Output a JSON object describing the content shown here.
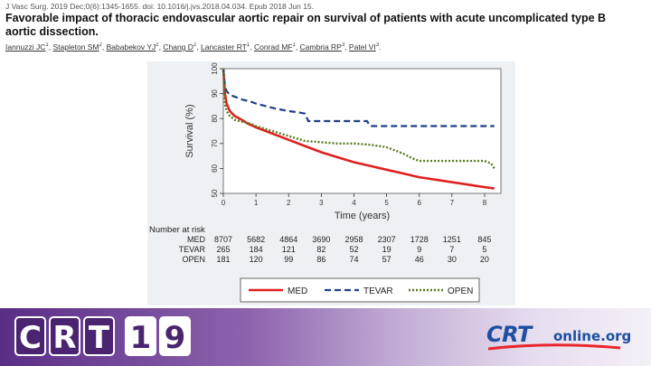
{
  "citation": "J Vasc Surg. 2019 Dec;0(6):1345-1655. doi: 10.1016/j.jvs.2018.04.034. Epub 2018 Jun 15.",
  "article_title": "Favorable impact of thoracic endovascular aortic repair on survival of patients with acute uncomplicated type B aortic dissection.",
  "authors": [
    "Iannuzzi JC",
    "Stapleton SM",
    "Bababekov YJ",
    "Chang D",
    "Lancaster RT",
    "Conrad MF",
    "Cambria RP",
    "Patel VI"
  ],
  "author_superscripts": [
    "1",
    "2",
    "2",
    "2",
    "1",
    "1",
    "3",
    "3"
  ],
  "colors": {
    "med": "#e02020",
    "tevar": "#1f3f8a",
    "open": "#5a7a1e",
    "banner": "#5b2e86"
  },
  "chart_data": {
    "type": "line",
    "xlabel": "Time (years)",
    "ylabel": "Survival (%)",
    "xlim": [
      0,
      8.5
    ],
    "ylim": [
      50,
      100
    ],
    "xticks": [
      0,
      1,
      2,
      3,
      4,
      5,
      6,
      7,
      8
    ],
    "yticks": [
      50,
      60,
      70,
      80,
      90,
      100
    ],
    "grid": false,
    "legend": "bottom",
    "series": [
      {
        "name": "MED",
        "style": "solid",
        "x": [
          0,
          0.05,
          0.1,
          0.2,
          0.35,
          0.5,
          0.75,
          1.0,
          1.5,
          2.0,
          2.5,
          3.0,
          3.5,
          4.0,
          4.5,
          5.0,
          5.5,
          6.0,
          6.5,
          7.0,
          7.5,
          8.0,
          8.3
        ],
        "y": [
          100,
          90,
          86,
          83,
          81,
          80,
          78,
          76.5,
          74,
          71.5,
          69,
          66.5,
          64.5,
          62.5,
          61,
          59.5,
          58,
          56.5,
          55.5,
          54.5,
          53.5,
          52.5,
          52
        ]
      },
      {
        "name": "TEVAR",
        "style": "dashed",
        "x": [
          0,
          0.05,
          0.1,
          0.2,
          0.4,
          0.6,
          0.8,
          1.0,
          1.3,
          1.6,
          2.0,
          2.3,
          2.5,
          2.6,
          3.0,
          3.5,
          4.0,
          4.4,
          4.5,
          5.0,
          6.0,
          7.0,
          8.0,
          8.3
        ],
        "y": [
          100,
          93,
          91,
          89.5,
          88.5,
          87.5,
          87,
          86,
          85,
          84,
          83,
          82.5,
          82,
          79,
          79,
          79,
          79,
          79,
          77,
          77,
          77,
          77,
          77,
          77
        ]
      },
      {
        "name": "OPEN",
        "style": "dotted",
        "x": [
          0,
          0.05,
          0.1,
          0.2,
          0.35,
          0.5,
          0.8,
          1.0,
          1.5,
          2.0,
          2.5,
          3.0,
          3.5,
          4.0,
          4.5,
          5.0,
          5.5,
          5.8,
          6.0,
          6.5,
          7.0,
          7.5,
          8.0,
          8.2,
          8.3
        ],
        "y": [
          100,
          86,
          83,
          81,
          79.5,
          79,
          78,
          77,
          75,
          73,
          71,
          70.5,
          70,
          70,
          69.5,
          68.5,
          66,
          64,
          63,
          63,
          63,
          63,
          63,
          62,
          60
        ]
      }
    ],
    "risk_table": {
      "title": "Number at risk",
      "times": [
        0,
        1,
        2,
        3,
        4,
        5,
        6,
        7,
        8
      ],
      "rows": [
        {
          "label": "MED",
          "values": [
            "8707",
            "5682",
            "4864",
            "3690",
            "2958",
            "2307",
            "1728",
            "1251",
            "845"
          ]
        },
        {
          "label": "TEVAR",
          "values": [
            "265",
            "184",
            "121",
            "82",
            "52",
            "19",
            "9",
            "7",
            "5"
          ]
        },
        {
          "label": "OPEN",
          "values": [
            "181",
            "120",
            "99",
            "86",
            "74",
            "57",
            "46",
            "30",
            "20"
          ]
        }
      ]
    }
  },
  "logo_left": {
    "letters": [
      "C",
      "R",
      "T",
      "1",
      "9"
    ]
  },
  "logo_right": {
    "main": "CRT",
    "sub": "online.org"
  }
}
